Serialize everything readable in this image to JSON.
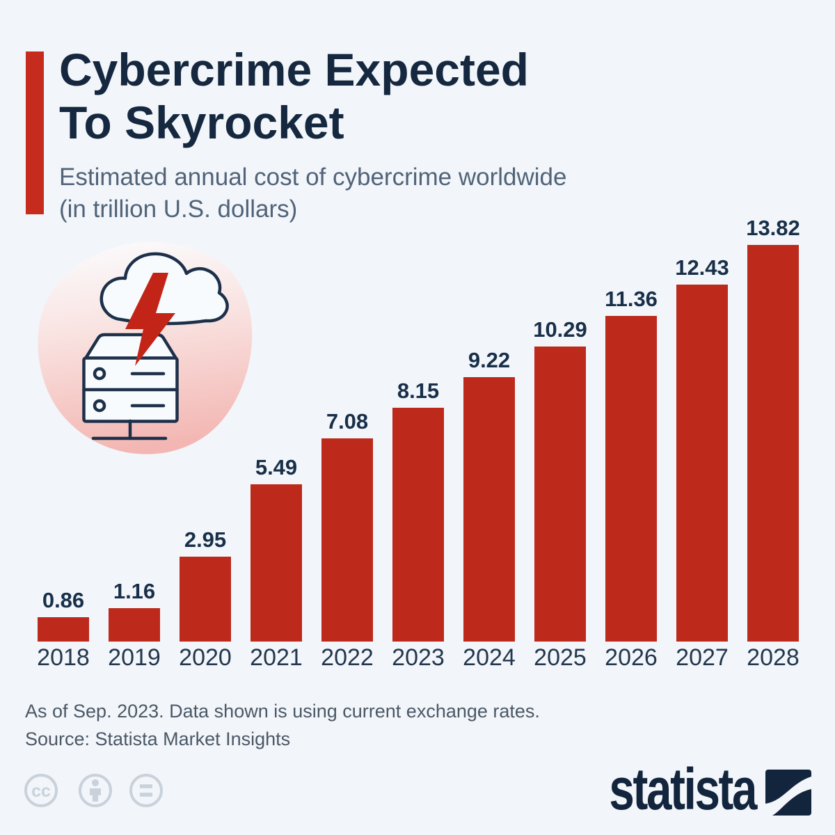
{
  "header": {
    "title_line1": "Cybercrime Expected",
    "title_line2": "To Skyrocket",
    "subtitle_line1": "Estimated annual cost of cybercrime worldwide",
    "subtitle_line2": "(in trillion U.S. dollars)"
  },
  "chart_data": {
    "type": "bar",
    "title": "Cybercrime Expected To Skyrocket",
    "subtitle": "Estimated annual cost of cybercrime worldwide (in trillion U.S. dollars)",
    "categories": [
      "2018",
      "2019",
      "2020",
      "2021",
      "2022",
      "2023",
      "2024",
      "2025",
      "2026",
      "2027",
      "2028"
    ],
    "values": [
      0.86,
      1.16,
      2.95,
      5.49,
      7.08,
      8.15,
      9.22,
      10.29,
      11.36,
      12.43,
      13.82
    ],
    "value_labels": [
      "0.86",
      "1.16",
      "2.95",
      "5.49",
      "7.08",
      "8.15",
      "9.22",
      "10.29",
      "11.36",
      "12.43",
      "13.82"
    ],
    "unit": "trillion U.S. dollars",
    "xlabel": "",
    "ylabel": "Estimated annual cost of cybercrime worldwide (in trillion U.S. dollars)",
    "ylim": [
      0,
      13.82
    ],
    "grid": false,
    "legend_position": "none",
    "bar_color": "#bd2a1c",
    "label_position": "above-bars"
  },
  "illustration": {
    "name": "cloud-lightning-hitting-server",
    "elements": [
      "pink-blob-background",
      "cloud-outline",
      "red-lightning-bolt",
      "server-rack",
      "network-stand"
    ]
  },
  "footer": {
    "note_line1": "As of Sep. 2023. Data shown is using current exchange rates.",
    "note_line2": "Source: Statista Market Insights",
    "license_badges": [
      "cc",
      "attribution",
      "equal"
    ]
  },
  "branding": {
    "logo_text": "statista"
  },
  "colors": {
    "background": "#f2f5f9",
    "accent_red": "#c52c1d",
    "bar_red": "#bd2a1c",
    "title_navy": "#15283f",
    "subtitle_gray_blue": "#506379",
    "value_label_navy": "#182f49",
    "axis_label_navy": "#23374e",
    "footnote_gray": "#4b5866",
    "license_gray": "#c9d1da",
    "logo_navy": "#12253d",
    "illustration_outline_navy": "#1d304a",
    "illustration_bolt_red": "#c22517",
    "blob_pink_top": "#fcfcfe",
    "blob_pink_bottom": "#f3b6b2"
  }
}
